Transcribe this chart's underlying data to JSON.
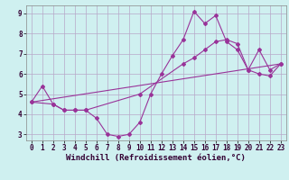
{
  "xlabel": "Windchill (Refroidissement éolien,°C)",
  "xlim": [
    -0.5,
    23.5
  ],
  "ylim": [
    2.7,
    9.4
  ],
  "xticks": [
    0,
    1,
    2,
    3,
    4,
    5,
    6,
    7,
    8,
    9,
    10,
    11,
    12,
    13,
    14,
    15,
    16,
    17,
    18,
    19,
    20,
    21,
    22,
    23
  ],
  "yticks": [
    3,
    4,
    5,
    6,
    7,
    8,
    9
  ],
  "background_color": "#cff0f0",
  "grid_color": "#b8a8c8",
  "line_color": "#993399",
  "line1_x": [
    0,
    1,
    2,
    3,
    4,
    5,
    6,
    7,
    8,
    9,
    10,
    11,
    12,
    13,
    14,
    15,
    16,
    17,
    18,
    19,
    20,
    21,
    22,
    23
  ],
  "line1_y": [
    4.6,
    5.4,
    4.5,
    4.2,
    4.2,
    4.2,
    3.8,
    3.0,
    2.9,
    3.0,
    3.6,
    5.0,
    6.0,
    6.9,
    7.7,
    9.1,
    8.5,
    8.9,
    7.6,
    7.2,
    6.2,
    6.0,
    5.9,
    6.5
  ],
  "line2_x": [
    0,
    2,
    3,
    4,
    5,
    10,
    14,
    15,
    16,
    17,
    18,
    19,
    20,
    21,
    22,
    23
  ],
  "line2_y": [
    4.6,
    4.5,
    4.2,
    4.2,
    4.2,
    5.0,
    6.5,
    6.8,
    7.2,
    7.6,
    7.7,
    7.5,
    6.2,
    7.2,
    6.2,
    6.5
  ],
  "line3_x": [
    0,
    23
  ],
  "line3_y": [
    4.6,
    6.5
  ],
  "font_size_xlabel": 6.5,
  "font_size_tick": 5.5,
  "lw": 0.8,
  "marker": "D",
  "marker_size": 2.0
}
